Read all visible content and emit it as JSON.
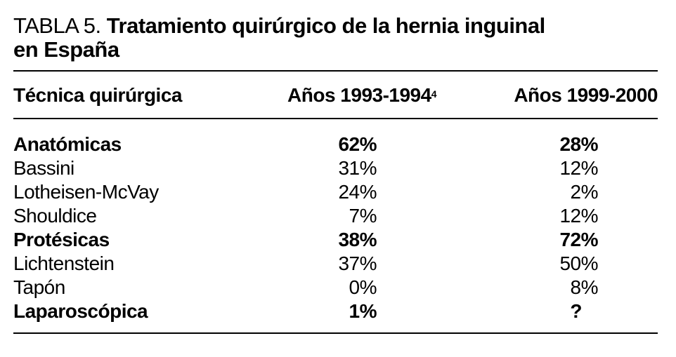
{
  "table": {
    "title_lead": "TABLA 5.",
    "title_bold_line1": "Tratamiento quirúrgico de la hernia inguinal",
    "title_bold_line2": "en España",
    "headers": {
      "technique": "Técnica quirúrgica",
      "period1": "Años 1993-1994",
      "period1_ref": "4",
      "period2": "Años 1999-2000"
    },
    "rows": [
      {
        "technique": "Anatómicas",
        "period1": "62%",
        "period2": "28%",
        "bold": true
      },
      {
        "technique": "Bassini",
        "period1": "31%",
        "period2": "12%",
        "bold": false
      },
      {
        "technique": "Lotheisen-McVay",
        "period1": "24%",
        "period2": "2%",
        "bold": false
      },
      {
        "technique": "Shouldice",
        "period1": "7%",
        "period2": "12%",
        "bold": false
      },
      {
        "technique": "Protésicas",
        "period1": "38%",
        "period2": "72%",
        "bold": true
      },
      {
        "technique": "Lichtenstein",
        "period1": "37%",
        "period2": "50%",
        "bold": false
      },
      {
        "technique": "Tapón",
        "period1": "0%",
        "period2": "8%",
        "bold": false
      },
      {
        "technique": "Laparoscópica",
        "period1": "1%",
        "period2": "?",
        "bold": true
      }
    ]
  }
}
